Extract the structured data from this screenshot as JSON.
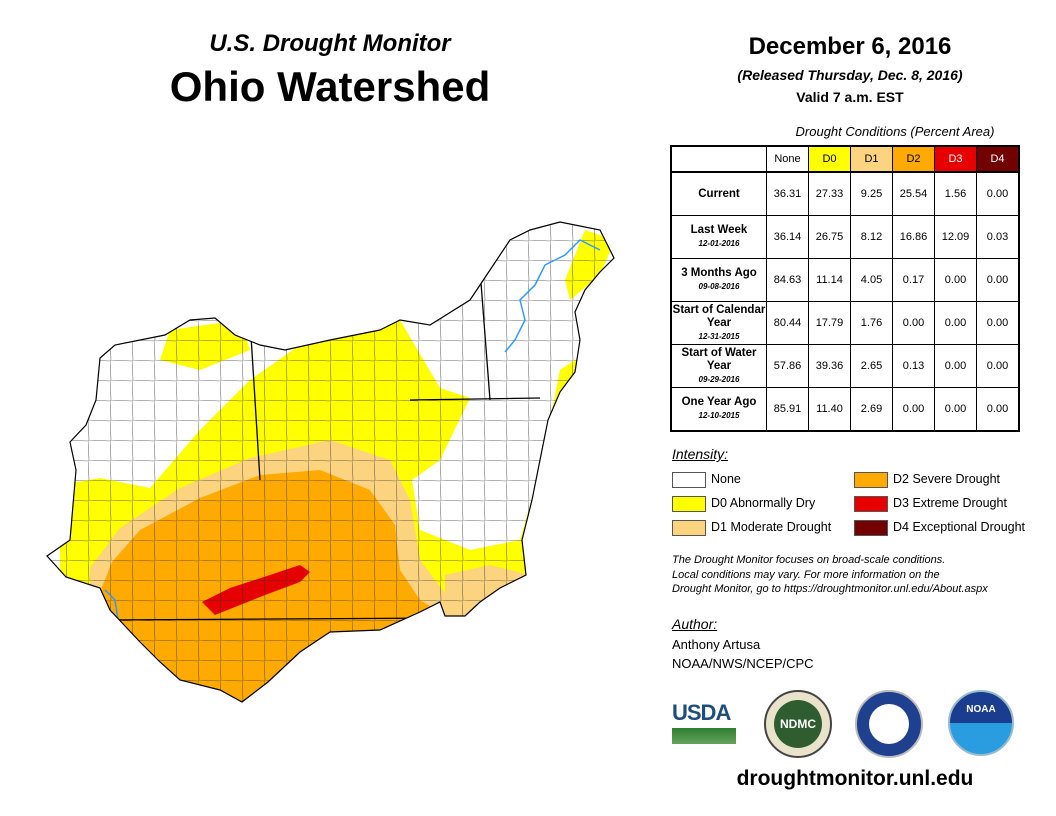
{
  "header": {
    "subtitle": "U.S. Drought Monitor",
    "title": "Ohio Watershed",
    "date": "December 6, 2016",
    "released": "(Released Thursday, Dec. 8, 2016)",
    "valid": "Valid 7 a.m. EST"
  },
  "table": {
    "caption": "Drought Conditions (Percent Area)",
    "columns": [
      "None",
      "D0",
      "D1",
      "D2",
      "D3",
      "D4"
    ],
    "rows": [
      {
        "label": "Current",
        "date": "",
        "values": [
          "36.31",
          "27.33",
          "9.25",
          "25.54",
          "1.56",
          "0.00"
        ]
      },
      {
        "label": "Last Week",
        "date": "12-01-2016",
        "values": [
          "36.14",
          "26.75",
          "8.12",
          "16.86",
          "12.09",
          "0.03"
        ]
      },
      {
        "label": "3 Months Ago",
        "date": "09-08-2016",
        "values": [
          "84.63",
          "11.14",
          "4.05",
          "0.17",
          "0.00",
          "0.00"
        ]
      },
      {
        "label": "Start of Calendar Year",
        "date": "12-31-2015",
        "values": [
          "80.44",
          "17.79",
          "1.76",
          "0.00",
          "0.00",
          "0.00"
        ]
      },
      {
        "label": "Start of Water Year",
        "date": "09-29-2016",
        "values": [
          "57.86",
          "39.36",
          "2.65",
          "0.13",
          "0.00",
          "0.00"
        ]
      },
      {
        "label": "One Year Ago",
        "date": "12-10-2015",
        "values": [
          "85.91",
          "11.40",
          "2.69",
          "0.00",
          "0.00",
          "0.00"
        ]
      }
    ]
  },
  "legend": {
    "heading": "Intensity:",
    "items": [
      {
        "label": "None",
        "color": "#ffffff"
      },
      {
        "label": "D0 Abnormally Dry",
        "color": "#ffff00"
      },
      {
        "label": "D1 Moderate Drought",
        "color": "#fcd37f"
      },
      {
        "label": "D2 Severe Drought",
        "color": "#ffaa00"
      },
      {
        "label": "D3 Extreme Drought",
        "color": "#e60000"
      },
      {
        "label": "D4 Exceptional Drought",
        "color": "#730000"
      }
    ]
  },
  "note": [
    "The Drought Monitor focuses on broad-scale conditions.",
    "Local conditions may vary. For more information on the",
    "Drought Monitor, go to https://droughtmonitor.unl.edu/About.aspx"
  ],
  "author": {
    "heading": "Author:",
    "name": "Anthony Artusa",
    "org": "NOAA/NWS/NCEP/CPC"
  },
  "logos": {
    "usda": "USDA",
    "ndmc": "NDMC",
    "noaa": "NOAA"
  },
  "footer": {
    "url": "droughtmonitor.unl.edu"
  }
}
